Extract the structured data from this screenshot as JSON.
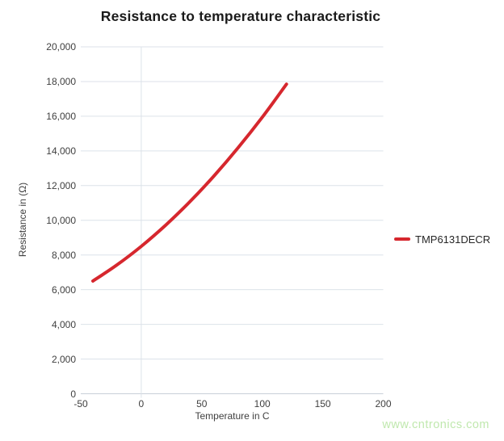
{
  "watermark": "www.cntronics.com",
  "colors": {
    "series": "#d6272e",
    "gridline": "#dce2e9",
    "axis_line": "#c9cfd8",
    "tick_text": "#3f3f3f",
    "title_text": "#1b1b1b",
    "legend_text": "#262626",
    "watermark_green": "#c0e8ae",
    "background": "#ffffff"
  },
  "chart_data": {
    "type": "line",
    "title": "Resistance to temperature characteristic",
    "xlabel": "Temperature in C",
    "ylabel": "Resistance in (Ω)",
    "xlim": [
      -50,
      200
    ],
    "ylim": [
      0,
      20000
    ],
    "x_ticks": [
      -50,
      0,
      50,
      100,
      150,
      200
    ],
    "x_tick_labels": [
      "-50",
      "0",
      "50",
      "100",
      "150",
      "200"
    ],
    "y_ticks": [
      0,
      2000,
      4000,
      6000,
      8000,
      10000,
      12000,
      14000,
      16000,
      18000,
      20000
    ],
    "y_tick_labels": [
      "0",
      "2,000",
      "4,000",
      "6,000",
      "8,000",
      "10,000",
      "12,000",
      "14,000",
      "16,000",
      "18,000",
      "20,000"
    ],
    "grid": "horizontal gridlines at every y tick; single vertical gridline at x=0 with small tick below axis",
    "legend_position": "right, outside plot, vertically centered",
    "series": [
      {
        "name": "TMP6131DECR",
        "color": "#d6272e",
        "x": [
          -40,
          -20,
          0,
          20,
          40,
          60,
          80,
          100,
          120
        ],
        "y": [
          6500,
          7430,
          8500,
          9710,
          11060,
          12550,
          14180,
          15940,
          17850
        ]
      }
    ]
  }
}
